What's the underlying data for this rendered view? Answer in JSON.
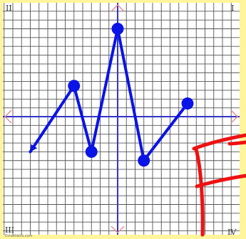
{
  "page": {
    "background_color": "#fff59a",
    "grid_background_color": "#ffffff",
    "grid_line_color": "#555555",
    "axis_color": "#3333cc",
    "arrowhead_color": "#e88a8a",
    "line_color": "#0a14e6",
    "annotation_color": "#ee1111"
  },
  "quadrant_labels": {
    "q1": "I",
    "q2": "II",
    "q3": "III",
    "q4": "IV"
  },
  "credit_text": "©mathbits.com",
  "grid": {
    "x_min": -13,
    "x_max": 13,
    "y_min": -13,
    "y_max": 13
  },
  "graph": {
    "points": [
      {
        "x": -5,
        "y": 3.5
      },
      {
        "x": -3,
        "y": -4
      },
      {
        "x": 0,
        "y": 10
      },
      {
        "x": 3,
        "y": -5
      },
      {
        "x": 8,
        "y": 1.5
      }
    ],
    "arrow_end": {
      "x": -10,
      "y": -4
    },
    "arrow_start_index": 0
  },
  "annotation": {
    "letter": "F",
    "description": "handwritten letter F"
  }
}
